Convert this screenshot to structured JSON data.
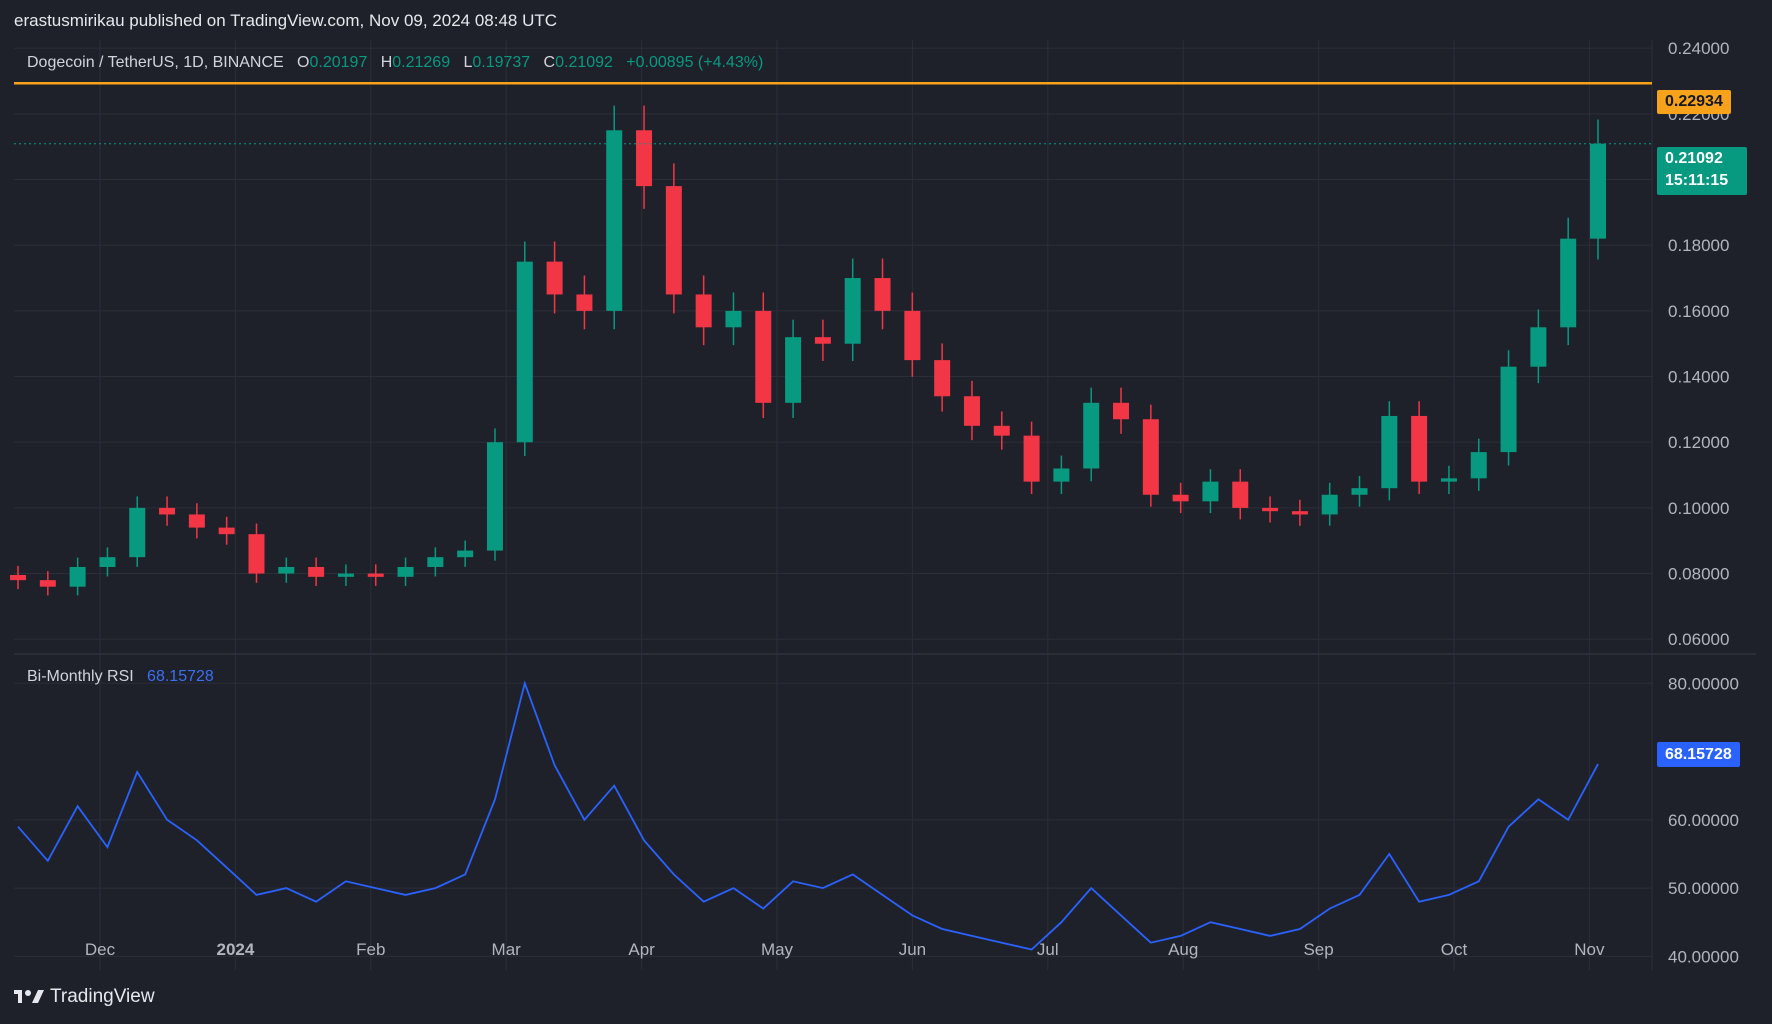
{
  "header": {
    "publisher_line": "erastusmirikau published on TradingView.com, Nov 09, 2024 08:48 UTC"
  },
  "legend": {
    "symbol": "Dogecoin / TetherUS, 1D, BINANCE",
    "o_label": "O",
    "o": "0.20197",
    "h_label": "H",
    "h": "0.21269",
    "l_label": "L",
    "l": "0.19737",
    "c_label": "C",
    "c": "0.21092",
    "change": "+0.00895 (+4.43%)"
  },
  "rsi_legend": {
    "name": "Bi-Monthly RSI",
    "value": "68.15728"
  },
  "tags": {
    "resistance": "0.22934",
    "last_price": "0.21092",
    "countdown": "15:11:15",
    "rsi_last": "68.15728"
  },
  "footer": {
    "brand": "TradingView"
  },
  "colors": {
    "background": "#1f212a",
    "grid": "#2a2e39",
    "up": "#089981",
    "down": "#f23645",
    "resistance": "#f7a21b",
    "rsi": "#2962ff",
    "text": "#b2b5be"
  },
  "chart_data": [
    {
      "type": "candlestick",
      "title": "Dogecoin / TetherUS, 1D, BINANCE",
      "x_ticks": [
        "Dec",
        "2024",
        "Feb",
        "Mar",
        "Apr",
        "May",
        "Jun",
        "Jul",
        "Aug",
        "Sep",
        "Oct",
        "Nov"
      ],
      "y_ticks": [
        "0.24000",
        "0.22000",
        "0.20000",
        "0.18000",
        "0.16000",
        "0.14000",
        "0.12000",
        "0.10000",
        "0.08000",
        "0.06000"
      ],
      "ylim": [
        0.0555,
        0.2425
      ],
      "x": [
        "2023-11-07",
        "2023-11-14",
        "2023-11-21",
        "2023-11-28",
        "2023-12-05",
        "2023-12-12",
        "2023-12-19",
        "2023-12-26",
        "2024-01-02",
        "2024-01-09",
        "2024-01-16",
        "2024-01-23",
        "2024-01-30",
        "2024-02-06",
        "2024-02-13",
        "2024-02-20",
        "2024-02-27",
        "2024-03-05",
        "2024-03-12",
        "2024-03-19",
        "2024-03-26",
        "2024-04-02",
        "2024-04-09",
        "2024-04-16",
        "2024-04-23",
        "2024-04-30",
        "2024-05-07",
        "2024-05-14",
        "2024-05-21",
        "2024-05-28",
        "2024-06-04",
        "2024-06-11",
        "2024-06-18",
        "2024-06-25",
        "2024-07-02",
        "2024-07-09",
        "2024-07-16",
        "2024-07-23",
        "2024-07-30",
        "2024-08-06",
        "2024-08-13",
        "2024-08-20",
        "2024-08-27",
        "2024-09-03",
        "2024-09-10",
        "2024-09-17",
        "2024-09-24",
        "2024-10-01",
        "2024-10-08",
        "2024-10-15",
        "2024-10-22",
        "2024-10-29",
        "2024-11-05",
        "2024-11-09"
      ],
      "series": [
        {
          "name": "",
          "values": [
            0.078,
            0.076,
            0.082,
            0.085,
            0.1,
            0.098,
            0.094,
            0.092,
            0.08,
            0.082,
            0.079,
            0.08,
            0.079,
            0.082,
            0.085,
            0.087,
            0.12,
            0.175,
            0.165,
            0.16,
            0.215,
            0.198,
            0.165,
            0.155,
            0.16,
            0.132,
            0.152,
            0.15,
            0.17,
            0.16,
            0.145,
            0.134,
            0.125,
            0.122,
            0.108,
            0.112,
            0.132,
            0.127,
            0.104,
            0.102,
            0.108,
            0.1,
            0.099,
            0.098,
            0.104,
            0.106,
            0.128,
            0.108,
            0.109,
            0.117,
            0.143,
            0.155,
            0.182,
            0.21092
          ]
        }
      ],
      "resistance": 0.22934
    },
    {
      "type": "line",
      "title": "Bi-Monthly RSI",
      "y_ticks": [
        "80.00000",
        "60.00000",
        "50.00000",
        "40.00000"
      ],
      "ylim": [
        38,
        84
      ],
      "series": [
        {
          "name": "",
          "values": [
            59,
            54,
            62,
            56,
            67,
            60,
            57,
            53,
            49,
            50,
            48,
            51,
            50,
            49,
            50,
            52,
            63,
            80,
            68,
            60,
            65,
            57,
            52,
            48,
            50,
            47,
            51,
            50,
            52,
            49,
            46,
            44,
            43,
            42,
            41,
            45,
            50,
            46,
            42,
            43,
            45,
            44,
            43,
            44,
            47,
            49,
            55,
            48,
            49,
            51,
            59,
            63,
            60,
            68.15728
          ]
        }
      ]
    }
  ]
}
